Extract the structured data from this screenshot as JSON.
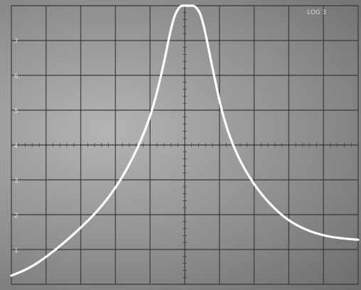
{
  "chart_data": {
    "type": "line",
    "title": "",
    "xlabel": "",
    "ylabel": "",
    "grid": true,
    "grid_divisions": {
      "x": 10,
      "y": 8
    },
    "x_range": [
      0,
      10
    ],
    "y_range": [
      0,
      8
    ],
    "graticule_labels": [
      "7",
      "6",
      "5",
      "4",
      "3",
      "2",
      "1"
    ],
    "corner_labels": {
      "top_right": "LOG 3"
    },
    "colors": {
      "trace": "#ffffff",
      "grid": "#353535",
      "screen": "#9a9a9a"
    },
    "series": [
      {
        "points": [
          [
            0.0,
            0.25
          ],
          [
            0.5,
            0.45
          ],
          [
            1.0,
            0.78
          ],
          [
            1.5,
            1.18
          ],
          [
            2.0,
            1.62
          ],
          [
            2.5,
            2.12
          ],
          [
            3.0,
            2.75
          ],
          [
            3.5,
            3.6
          ],
          [
            4.0,
            4.75
          ],
          [
            4.35,
            6.1
          ],
          [
            4.65,
            7.6
          ],
          [
            4.85,
            8.0
          ],
          [
            5.0,
            8.0
          ],
          [
            5.15,
            8.0
          ],
          [
            5.3,
            8.0
          ],
          [
            5.5,
            7.7
          ],
          [
            5.8,
            6.2
          ],
          [
            6.1,
            4.8
          ],
          [
            6.5,
            3.7
          ],
          [
            7.0,
            2.85
          ],
          [
            7.5,
            2.25
          ],
          [
            8.0,
            1.82
          ],
          [
            8.5,
            1.56
          ],
          [
            9.0,
            1.4
          ],
          [
            9.5,
            1.32
          ],
          [
            10.0,
            1.28
          ]
        ]
      }
    ]
  }
}
